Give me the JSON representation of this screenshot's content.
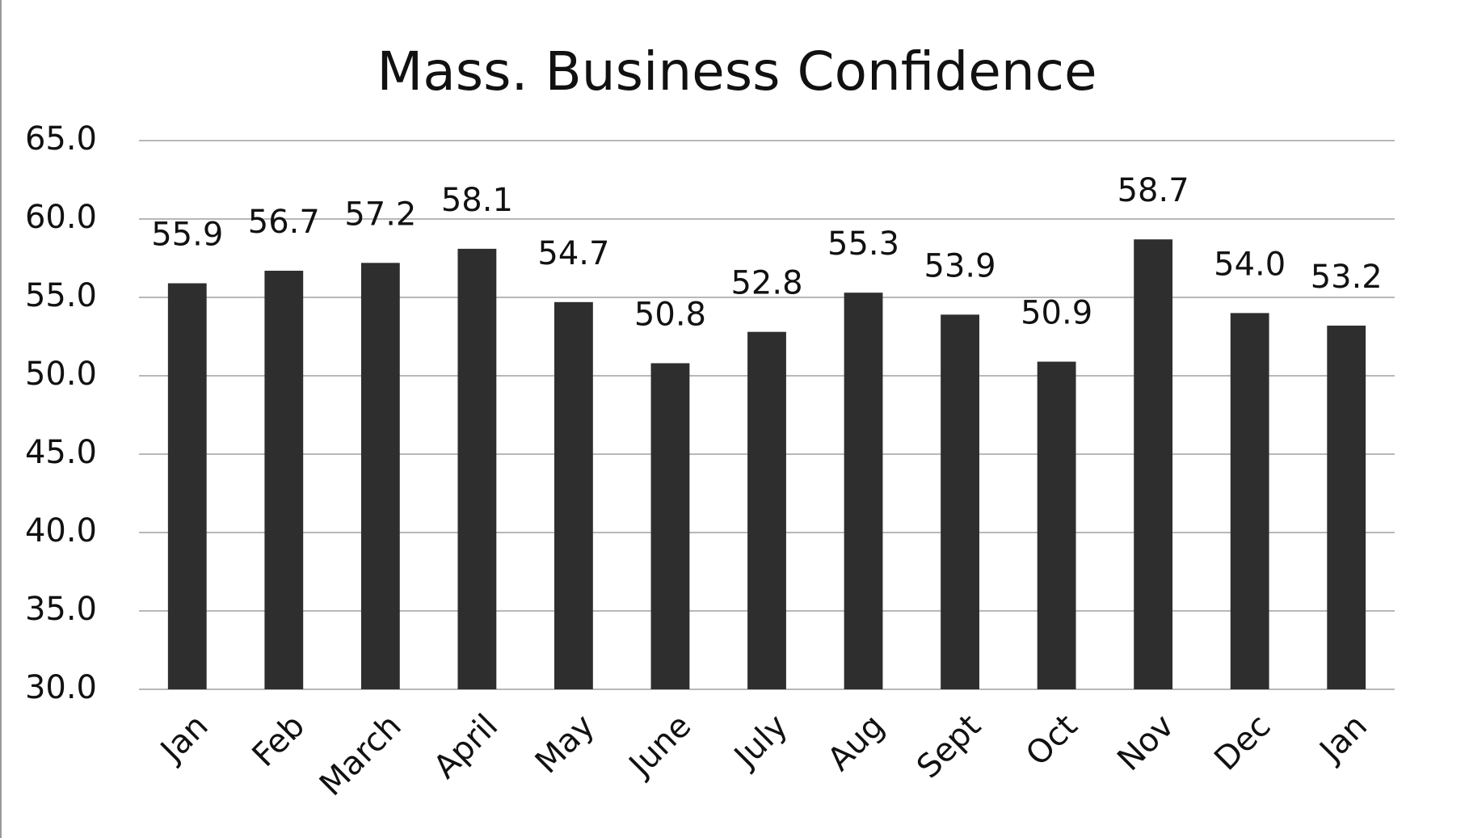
{
  "chart_data": {
    "type": "bar",
    "title": "Mass. Business Confidence",
    "categories": [
      "Jan",
      "Feb",
      "March",
      "April",
      "May",
      "June",
      "July",
      "Aug",
      "Sept",
      "Oct",
      "Nov",
      "Dec",
      "Jan"
    ],
    "values": [
      55.9,
      56.7,
      57.2,
      58.1,
      54.7,
      50.8,
      52.8,
      55.3,
      53.9,
      50.9,
      58.7,
      54.0,
      53.2
    ],
    "value_labels": [
      "55.9",
      "56.7",
      "57.2",
      "58.1",
      "54.7",
      "50.8",
      "52.8",
      "55.3",
      "53.9",
      "50.9",
      "58.7",
      "54.0",
      "53.2"
    ],
    "color": "#2e2e2e",
    "ylim": [
      30,
      65
    ],
    "yticks": [
      {
        "value": 30,
        "label": "30.0"
      },
      {
        "value": 35,
        "label": "35.0"
      },
      {
        "value": 40,
        "label": "40.0"
      },
      {
        "value": 45,
        "label": "45.0"
      },
      {
        "value": 50,
        "label": "50.0"
      },
      {
        "value": 55,
        "label": "55.0"
      },
      {
        "value": 60,
        "label": "60.0"
      },
      {
        "value": 65,
        "label": "65.0"
      }
    ],
    "grid": true
  }
}
